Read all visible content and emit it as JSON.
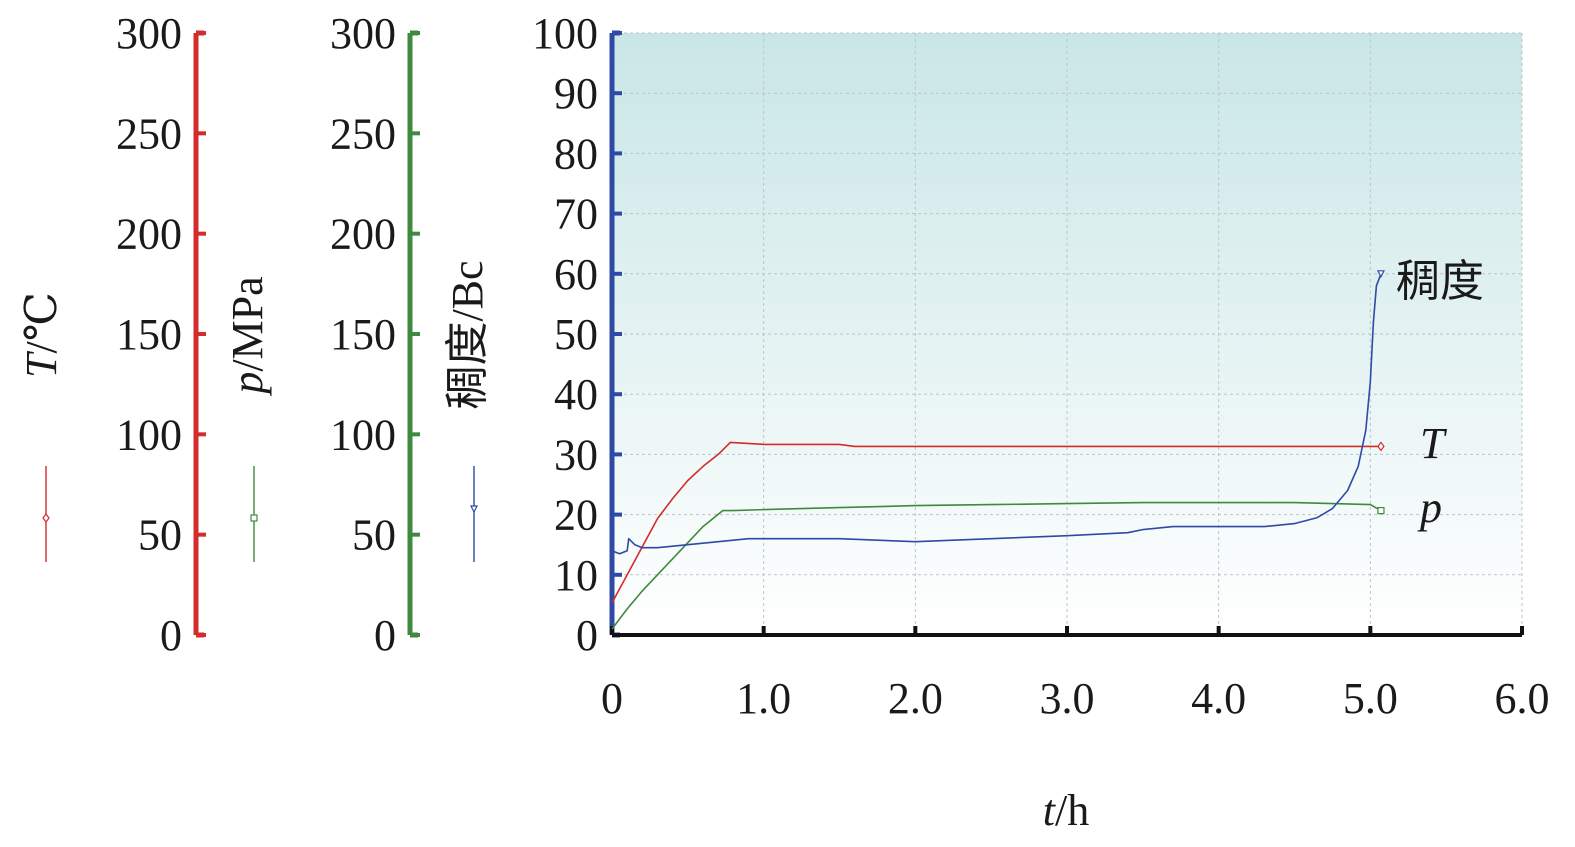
{
  "chart_data": {
    "type": "line",
    "xlabel_italic": "t",
    "xlabel_rest": "/h",
    "x_ticks": [
      "0",
      "1.0",
      "2.0",
      "3.0",
      "4.0",
      "5.0",
      "6.0"
    ],
    "x_tick_values": [
      0,
      1,
      2,
      3,
      4,
      5,
      6
    ],
    "xlim": [
      0,
      6
    ],
    "grid": true,
    "legend_placement": "left, beside axis titles",
    "axes": [
      {
        "id": "T",
        "label_italic": "T",
        "label_rest": "/℃",
        "color": "#d42b2b",
        "ylim": [
          0,
          300
        ],
        "ticks": [
          "0",
          "50",
          "100",
          "150",
          "200",
          "250",
          "300"
        ]
      },
      {
        "id": "p",
        "label_italic": "p",
        "label_rest": "/MPa",
        "color": "#3f8a3f",
        "ylim": [
          0,
          300
        ],
        "ticks": [
          "0",
          "50",
          "100",
          "150",
          "200",
          "250",
          "300"
        ]
      },
      {
        "id": "Bc",
        "label": "稠度/Bc",
        "color": "#2e4aa6",
        "ylim": [
          0,
          100
        ],
        "ticks": [
          "0",
          "10",
          "20",
          "30",
          "40",
          "50",
          "60",
          "70",
          "80",
          "90",
          "100"
        ]
      }
    ],
    "series": [
      {
        "id": "T",
        "name": "T",
        "axis": "T",
        "color": "#d42b2b",
        "x": [
          0.0,
          0.1,
          0.2,
          0.3,
          0.4,
          0.5,
          0.6,
          0.7,
          0.78,
          1.0,
          1.5,
          1.6,
          2.0,
          3.0,
          4.0,
          4.5,
          5.0,
          5.07
        ],
        "y": [
          16,
          30,
          44,
          58,
          68,
          77,
          84,
          90,
          96,
          95,
          95,
          94,
          94,
          94,
          94,
          94,
          94,
          94
        ]
      },
      {
        "id": "p",
        "name": "p",
        "axis": "p",
        "color": "#3f8a3f",
        "x": [
          0.0,
          0.1,
          0.2,
          0.3,
          0.4,
          0.5,
          0.6,
          0.73,
          0.8,
          1.0,
          1.5,
          2.0,
          2.5,
          3.0,
          3.5,
          4.0,
          4.5,
          5.0,
          5.07
        ],
        "y": [
          3,
          13,
          22,
          30,
          38,
          46,
          54,
          62,
          62,
          62.5,
          63.5,
          64.5,
          65,
          65.5,
          66,
          66,
          66,
          65,
          62
        ]
      },
      {
        "id": "Bc",
        "name": "稠度",
        "axis": "Bc",
        "color": "#2e4aa6",
        "x": [
          0.0,
          0.05,
          0.1,
          0.11,
          0.15,
          0.2,
          0.3,
          0.5,
          0.7,
          0.9,
          1.0,
          1.5,
          2.0,
          2.5,
          3.0,
          3.4,
          3.5,
          3.7,
          4.0,
          4.3,
          4.5,
          4.65,
          4.75,
          4.85,
          4.92,
          4.97,
          5.0,
          5.02,
          5.04,
          5.07
        ],
        "y": [
          14,
          13.5,
          14,
          16,
          15,
          14.5,
          14.5,
          15,
          15.5,
          16,
          16,
          16,
          15.5,
          16,
          16.5,
          17,
          17.5,
          18,
          18,
          18,
          18.5,
          19.5,
          21,
          24,
          28,
          34,
          42,
          52,
          58,
          60
        ]
      }
    ],
    "annotations": [
      {
        "series": "Bc",
        "text": "稠度"
      },
      {
        "series": "T",
        "text": "T"
      },
      {
        "series": "p",
        "text": "p"
      }
    ]
  }
}
